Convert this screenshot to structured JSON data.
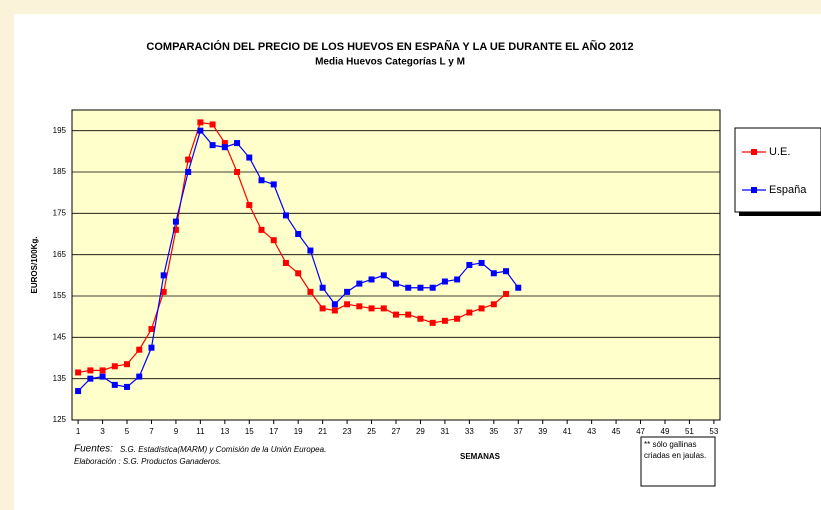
{
  "chart_data": {
    "type": "line",
    "title": "COMPARACIÓN DEL PRECIO DE LOS HUEVOS EN ESPAÑA Y LA UE DURANTE EL AÑO 2012",
    "subtitle": "Media Huevos Categorías L y M",
    "y_label": "EUROS/100Kg.",
    "x_label": "SEMANAS",
    "source_label": "Fuentes:",
    "source_text": "S.G. Estadística(MARM) y Comisión de la Unión Europea.",
    "credit": "Elaboración : S.G. Productos Ganaderos.",
    "note": [
      "** sólo gallinas",
      "criadas en jaulas."
    ],
    "x": [
      1,
      2,
      3,
      4,
      5,
      6,
      7,
      8,
      9,
      10,
      11,
      12,
      13,
      14,
      15,
      16,
      17,
      18,
      19,
      20,
      21,
      22,
      23,
      24,
      25,
      26,
      27,
      28,
      29,
      30,
      31,
      32,
      33,
      34,
      35,
      36,
      37
    ],
    "series": [
      {
        "name": "U.E.",
        "color": "#ff0000",
        "values": [
          136.5,
          137,
          137,
          138,
          138.5,
          142,
          147,
          156,
          171,
          188,
          197,
          196.5,
          192,
          185,
          177,
          171,
          168.5,
          163,
          160.5,
          156,
          152,
          151.5,
          153,
          152.5,
          152,
          152,
          150.5,
          150.5,
          149.5,
          148.5,
          149,
          149.5,
          151,
          152,
          153,
          155.5,
          null
        ]
      },
      {
        "name": "España",
        "color": "#0000ff",
        "values": [
          132,
          135,
          135.5,
          133.5,
          133,
          135.5,
          142.5,
          160,
          173,
          185,
          195,
          191.5,
          191,
          192,
          188.5,
          183,
          182,
          174.5,
          170,
          166,
          157,
          153,
          156,
          158,
          159,
          160,
          158,
          157,
          157,
          157,
          158.5,
          159,
          162.5,
          163,
          160.5,
          161,
          157
        ]
      }
    ],
    "xlim": [
      0.5,
      53.5
    ],
    "xticks": [
      1,
      3,
      5,
      7,
      9,
      11,
      13,
      15,
      17,
      19,
      21,
      23,
      25,
      27,
      29,
      31,
      33,
      35,
      37,
      39,
      41,
      43,
      45,
      47,
      49,
      51,
      53
    ],
    "ylim": [
      125,
      200
    ],
    "yticks": [
      125,
      135,
      145,
      155,
      165,
      175,
      185,
      195
    ],
    "grid": true,
    "plot_color": "#ffffcc",
    "legend": "right"
  }
}
